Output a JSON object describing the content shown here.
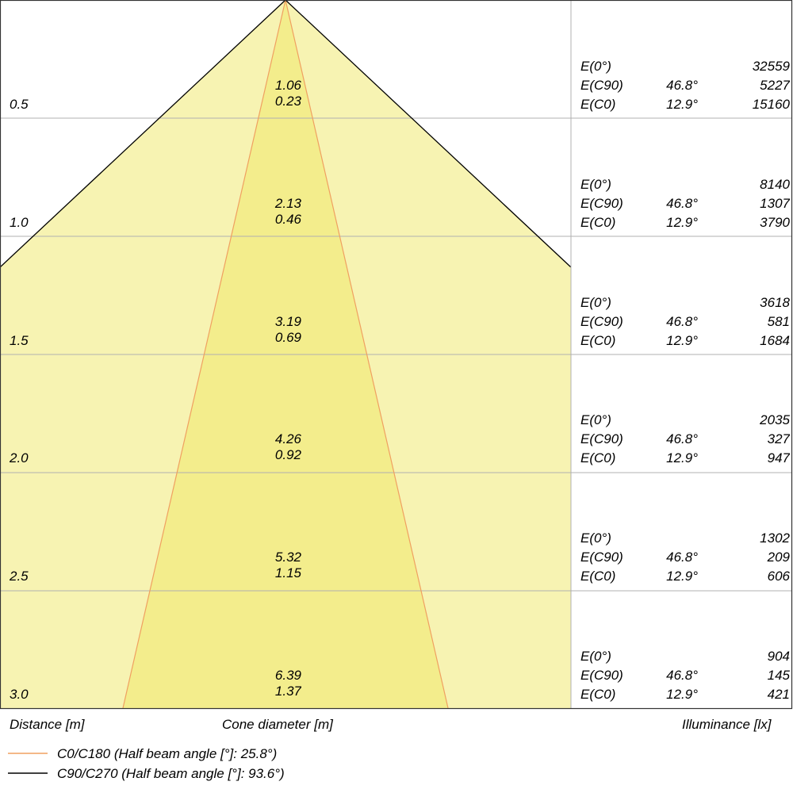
{
  "colors": {
    "outer_cone": "#f7f3b2",
    "inner_cone": "#f3ed8c",
    "c0_line": "#f0a060",
    "c90_line": "#000000",
    "grid": "#b0b0b0"
  },
  "rows": [
    {
      "distance": "0.5",
      "cone_c90": "1.06",
      "cone_c0": "0.23",
      "e0_label": "E(0°)",
      "ec90_label": "E(C90)",
      "ec0_label": "E(C0)",
      "e0": "32559",
      "ec90_angle": "46.8°",
      "ec90": "5227",
      "ec0_angle": "12.9°",
      "ec0": "15160"
    },
    {
      "distance": "1.0",
      "cone_c90": "2.13",
      "cone_c0": "0.46",
      "e0_label": "E(0°)",
      "ec90_label": "E(C90)",
      "ec0_label": "E(C0)",
      "e0": "8140",
      "ec90_angle": "46.8°",
      "ec90": "1307",
      "ec0_angle": "12.9°",
      "ec0": "3790"
    },
    {
      "distance": "1.5",
      "cone_c90": "3.19",
      "cone_c0": "0.69",
      "e0_label": "E(0°)",
      "ec90_label": "E(C90)",
      "ec0_label": "E(C0)",
      "e0": "3618",
      "ec90_angle": "46.8°",
      "ec90": "581",
      "ec0_angle": "12.9°",
      "ec0": "1684"
    },
    {
      "distance": "2.0",
      "cone_c90": "4.26",
      "cone_c0": "0.92",
      "e0_label": "E(0°)",
      "ec90_label": "E(C90)",
      "ec0_label": "E(C0)",
      "e0": "2035",
      "ec90_angle": "46.8°",
      "ec90": "327",
      "ec0_angle": "12.9°",
      "ec0": "947"
    },
    {
      "distance": "2.5",
      "cone_c90": "5.32",
      "cone_c0": "1.15",
      "e0_label": "E(0°)",
      "ec90_label": "E(C90)",
      "ec0_label": "E(C0)",
      "e0": "1302",
      "ec90_angle": "46.8°",
      "ec90": "209",
      "ec0_angle": "12.9°",
      "ec0": "606"
    },
    {
      "distance": "3.0",
      "cone_c90": "6.39",
      "cone_c0": "1.37",
      "e0_label": "E(0°)",
      "ec90_label": "E(C90)",
      "ec0_label": "E(C0)",
      "e0": "904",
      "ec90_angle": "46.8°",
      "ec90": "145",
      "ec0_angle": "12.9°",
      "ec0": "421"
    }
  ],
  "captions": {
    "distance": "Distance [m]",
    "cone": "Cone diameter [m]",
    "illuminance": "Illuminance [lx]"
  },
  "legend": [
    {
      "label": "C0/C180 (Half beam angle [°]: 25.8°)",
      "half_beam_angle": 25.8
    },
    {
      "label": "C90/C270 (Half beam angle [°]: 93.6°)",
      "half_beam_angle": 93.6
    }
  ]
}
